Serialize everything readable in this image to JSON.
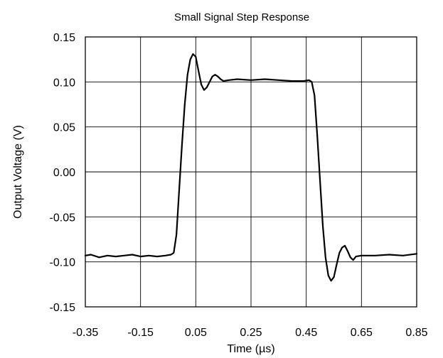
{
  "chart_data": {
    "type": "line",
    "title": "Small Signal Step Response",
    "xlabel": "Time (µs)",
    "ylabel": "Output Voltage (V)",
    "xlim": [
      -0.35,
      0.85
    ],
    "ylim": [
      -0.15,
      0.15
    ],
    "grid": true,
    "x_ticks": [
      -0.35,
      -0.15,
      0.05,
      0.25,
      0.45,
      0.65,
      0.85
    ],
    "y_ticks": [
      0.15,
      0.1,
      0.05,
      0.0,
      -0.05,
      -0.1,
      -0.15
    ],
    "x_tick_labels": [
      "-0.35",
      "-0.15",
      "0.05",
      "0.25",
      "0.45",
      "0.65",
      "0.85"
    ],
    "y_tick_labels": [
      "0.15",
      "0.10",
      "0.05",
      "0.00",
      "-0.05",
      "-0.10",
      "-0.15"
    ],
    "series": [
      {
        "x": [
          -0.35,
          -0.33,
          -0.3,
          -0.27,
          -0.24,
          -0.21,
          -0.18,
          -0.15,
          -0.12,
          -0.09,
          -0.06,
          -0.04,
          -0.03,
          -0.02,
          -0.01,
          0.0,
          0.01,
          0.02,
          0.03,
          0.04,
          0.05,
          0.06,
          0.07,
          0.08,
          0.09,
          0.1,
          0.11,
          0.12,
          0.13,
          0.14,
          0.15,
          0.17,
          0.2,
          0.25,
          0.3,
          0.35,
          0.4,
          0.44,
          0.46,
          0.47,
          0.48,
          0.49,
          0.5,
          0.51,
          0.52,
          0.53,
          0.54,
          0.55,
          0.56,
          0.57,
          0.58,
          0.59,
          0.6,
          0.61,
          0.62,
          0.63,
          0.65,
          0.7,
          0.75,
          0.8,
          0.85
        ],
        "y": [
          -0.093,
          -0.092,
          -0.095,
          -0.093,
          -0.094,
          -0.093,
          -0.092,
          -0.094,
          -0.093,
          -0.094,
          -0.093,
          -0.092,
          -0.09,
          -0.07,
          -0.02,
          0.03,
          0.075,
          0.108,
          0.125,
          0.131,
          0.128,
          0.112,
          0.097,
          0.091,
          0.094,
          0.1,
          0.106,
          0.108,
          0.106,
          0.103,
          0.101,
          0.102,
          0.103,
          0.102,
          0.103,
          0.102,
          0.101,
          0.101,
          0.102,
          0.1,
          0.085,
          0.04,
          -0.01,
          -0.06,
          -0.095,
          -0.115,
          -0.121,
          -0.117,
          -0.103,
          -0.09,
          -0.084,
          -0.082,
          -0.088,
          -0.095,
          -0.098,
          -0.094,
          -0.093,
          -0.093,
          -0.092,
          -0.093,
          -0.091
        ]
      }
    ]
  }
}
